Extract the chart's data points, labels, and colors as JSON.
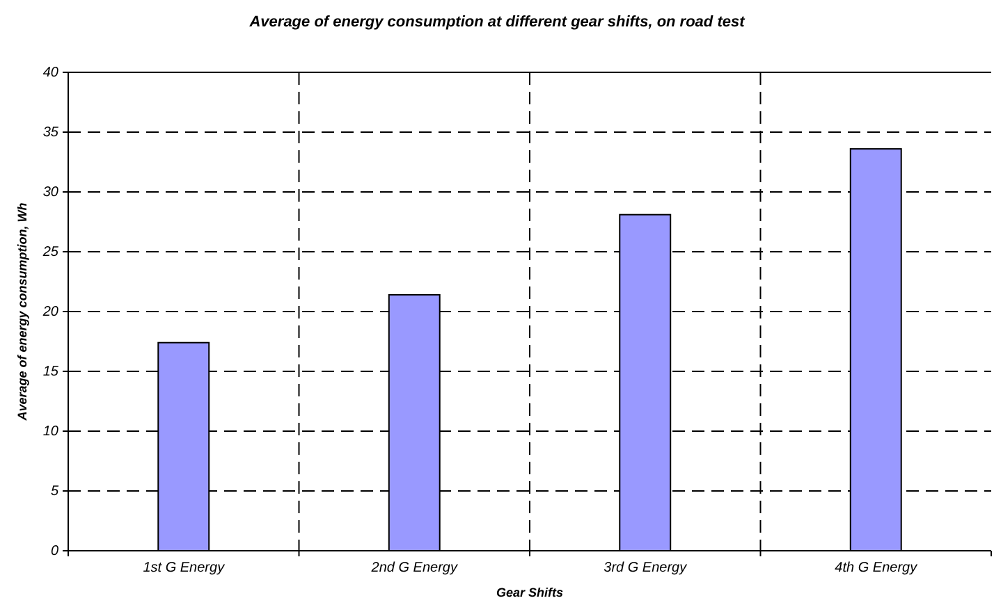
{
  "chart_data": {
    "type": "bar",
    "title": "Average of energy consumption at different gear shifts, on road test",
    "xlabel": "Gear Shifts",
    "ylabel": "Average of energy consumption, Wh",
    "categories": [
      "1st G Energy",
      "2nd G Energy",
      "3rd G Energy",
      "4th G Energy"
    ],
    "values": [
      17.4,
      21.4,
      28.1,
      33.6
    ],
    "color": "#9999ff",
    "ylim": [
      0,
      40
    ],
    "yticks": [
      0,
      5,
      10,
      15,
      20,
      25,
      30,
      35,
      40
    ],
    "grid": true
  }
}
